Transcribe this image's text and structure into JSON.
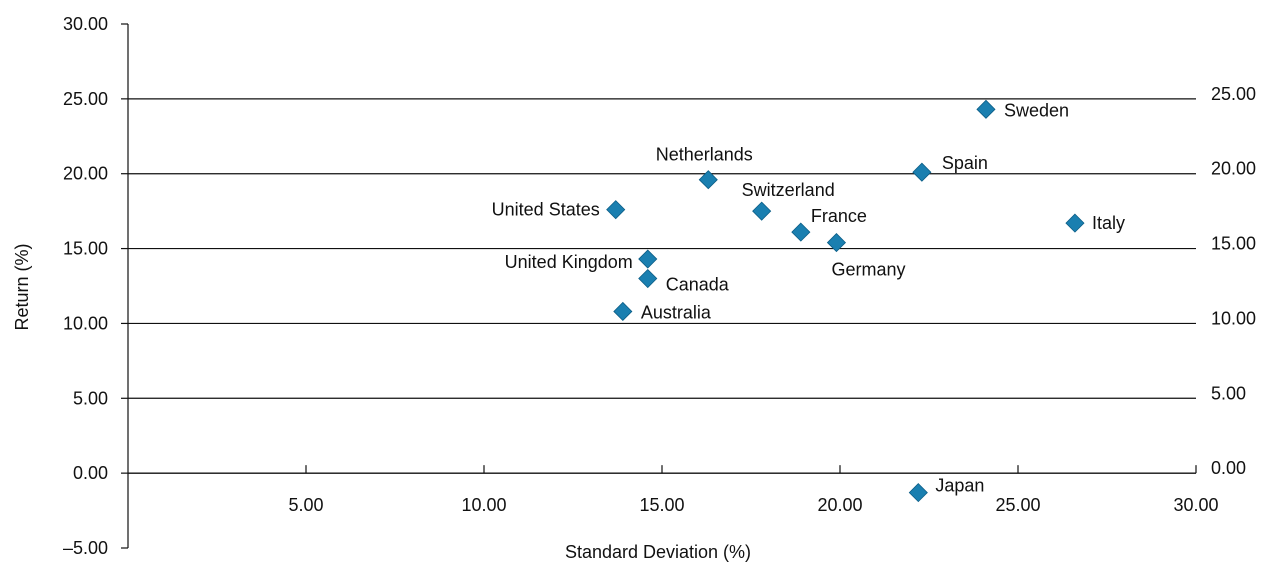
{
  "chart_data": {
    "type": "scatter",
    "title": "",
    "xlabel": "Standard Deviation (%)",
    "ylabel": "Return (%)",
    "xlim": [
      0,
      30
    ],
    "ylim": [
      -5,
      30
    ],
    "grid": true,
    "marker_color": "#1a7fb0",
    "x_ticks": [
      {
        "value": 5,
        "label": "5.00"
      },
      {
        "value": 10,
        "label": "10.00"
      },
      {
        "value": 15,
        "label": "15.00"
      },
      {
        "value": 20,
        "label": "20.00"
      },
      {
        "value": 25,
        "label": "25.00"
      },
      {
        "value": 30,
        "label": "30.00"
      }
    ],
    "y_ticks_left": [
      {
        "value": 30,
        "label": "30.00"
      },
      {
        "value": 25,
        "label": "25.00"
      },
      {
        "value": 20,
        "label": "20.00"
      },
      {
        "value": 15,
        "label": "15.00"
      },
      {
        "value": 10,
        "label": "10.00"
      },
      {
        "value": 5,
        "label": "5.00"
      },
      {
        "value": 0,
        "label": "0.00"
      },
      {
        "value": -5,
        "label": "–5.00"
      }
    ],
    "y_ticks_right": [
      {
        "value": 25,
        "label": "25.00"
      },
      {
        "value": 20,
        "label": "20.00"
      },
      {
        "value": 15,
        "label": "15.00"
      },
      {
        "value": 10,
        "label": "10.00"
      },
      {
        "value": 5,
        "label": "5.00"
      },
      {
        "value": 0,
        "label": "0.00"
      }
    ],
    "points": [
      {
        "label": "Sweden",
        "x": 24.1,
        "y": 24.3
      },
      {
        "label": "Spain",
        "x": 22.3,
        "y": 20.1
      },
      {
        "label": "Netherlands",
        "x": 16.3,
        "y": 19.6
      },
      {
        "label": "Switzerland",
        "x": 17.8,
        "y": 17.5
      },
      {
        "label": "United States",
        "x": 13.7,
        "y": 17.6
      },
      {
        "label": "France",
        "x": 18.9,
        "y": 16.1
      },
      {
        "label": "Italy",
        "x": 26.6,
        "y": 16.7
      },
      {
        "label": "Germany",
        "x": 19.9,
        "y": 15.4
      },
      {
        "label": "United Kingdom",
        "x": 14.6,
        "y": 14.3
      },
      {
        "label": "Canada",
        "x": 14.6,
        "y": 13.0
      },
      {
        "label": "Australia",
        "x": 13.9,
        "y": 10.8
      },
      {
        "label": "Japan",
        "x": 22.2,
        "y": -1.3
      }
    ]
  }
}
